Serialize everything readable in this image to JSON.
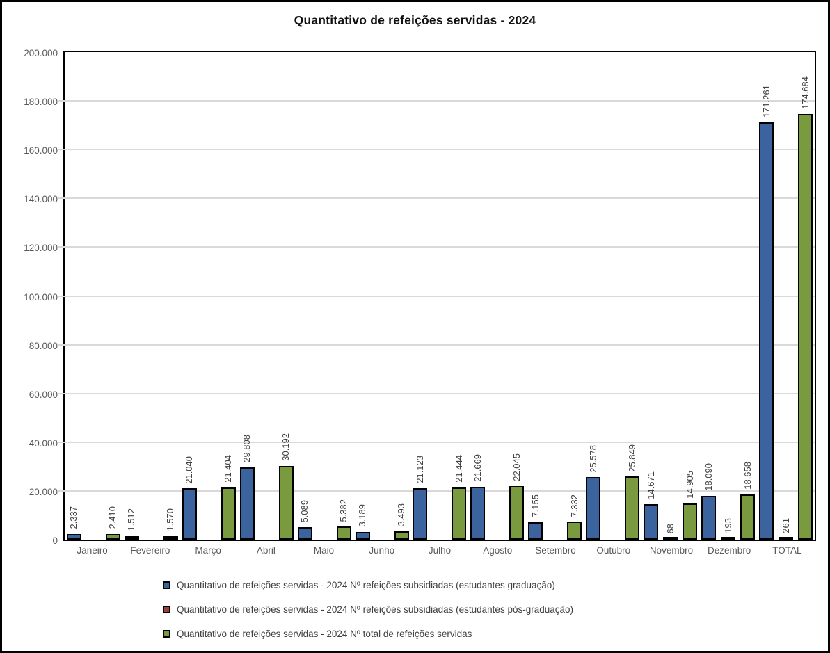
{
  "title": "Quantitativo de refeições servidas - 2024",
  "chart_data": {
    "type": "bar",
    "title": "Quantitativo de refeições servidas - 2024",
    "categories": [
      "Janeiro",
      "Fevereiro",
      "Março",
      "Abril",
      "Maio",
      "Junho",
      "Julho",
      "Agosto",
      "Setembro",
      "Outubro",
      "Novembro",
      "Dezembro",
      "TOTAL"
    ],
    "series": [
      {
        "key": "graduacao",
        "name": "Quantitativo de refeições servidas - 2024 Nº refeições subsidiadas (estudantes graduação)",
        "color": "#3b649e",
        "values": [
          2337,
          1512,
          21040,
          29808,
          5089,
          3189,
          21123,
          21669,
          7155,
          25578,
          14671,
          18090,
          171261
        ],
        "labels": [
          "2.337",
          "1.512",
          "21.040",
          "29.808",
          "5.089",
          "3.189",
          "21.123",
          "21.669",
          "7.155",
          "25.578",
          "14.671",
          "18.090",
          "171.261"
        ]
      },
      {
        "key": "pos-graduacao",
        "name": "Quantitativo de refeições servidas - 2024 Nº refeições subsidiadas (estudantes pós-graduação)",
        "color": "#9e3e38",
        "values": [
          null,
          null,
          null,
          null,
          null,
          null,
          null,
          null,
          null,
          null,
          68,
          193,
          261
        ],
        "labels": [
          null,
          null,
          null,
          null,
          null,
          null,
          null,
          null,
          null,
          null,
          "68",
          "193",
          "261"
        ]
      },
      {
        "key": "total",
        "name": "Quantitativo de refeições servidas - 2024 Nº total de refeições servidas",
        "color": "#7a9a3f",
        "values": [
          2410,
          1570,
          21404,
          30192,
          5382,
          3493,
          21444,
          22045,
          7332,
          25849,
          14905,
          18658,
          174684
        ],
        "labels": [
          "2.410",
          "1.570",
          "21.404",
          "30.192",
          "5.382",
          "3.493",
          "21.444",
          "22.045",
          "7.332",
          "25.849",
          "14.905",
          "18.658",
          "174.684"
        ]
      }
    ],
    "ylim": [
      0,
      200000
    ],
    "y_ticks": [
      {
        "value": 0,
        "label": "0"
      },
      {
        "value": 20000,
        "label": "20.000"
      },
      {
        "value": 40000,
        "label": "40.000"
      },
      {
        "value": 60000,
        "label": "60.000"
      },
      {
        "value": 80000,
        "label": "80.000"
      },
      {
        "value": 100000,
        "label": "100.000"
      },
      {
        "value": 120000,
        "label": "120.000"
      },
      {
        "value": 140000,
        "label": "140.000"
      },
      {
        "value": 160000,
        "label": "160.000"
      },
      {
        "value": 180000,
        "label": "180.000"
      },
      {
        "value": 200000,
        "label": "200.000"
      }
    ],
    "grid": "horizontal",
    "legend_position": "bottom",
    "colors": {
      "gridline": "#d9d9d9",
      "axis_text": "#595959",
      "data_label_text": "#404040",
      "bar_border": "#000000",
      "plot_border": "#000000"
    }
  }
}
